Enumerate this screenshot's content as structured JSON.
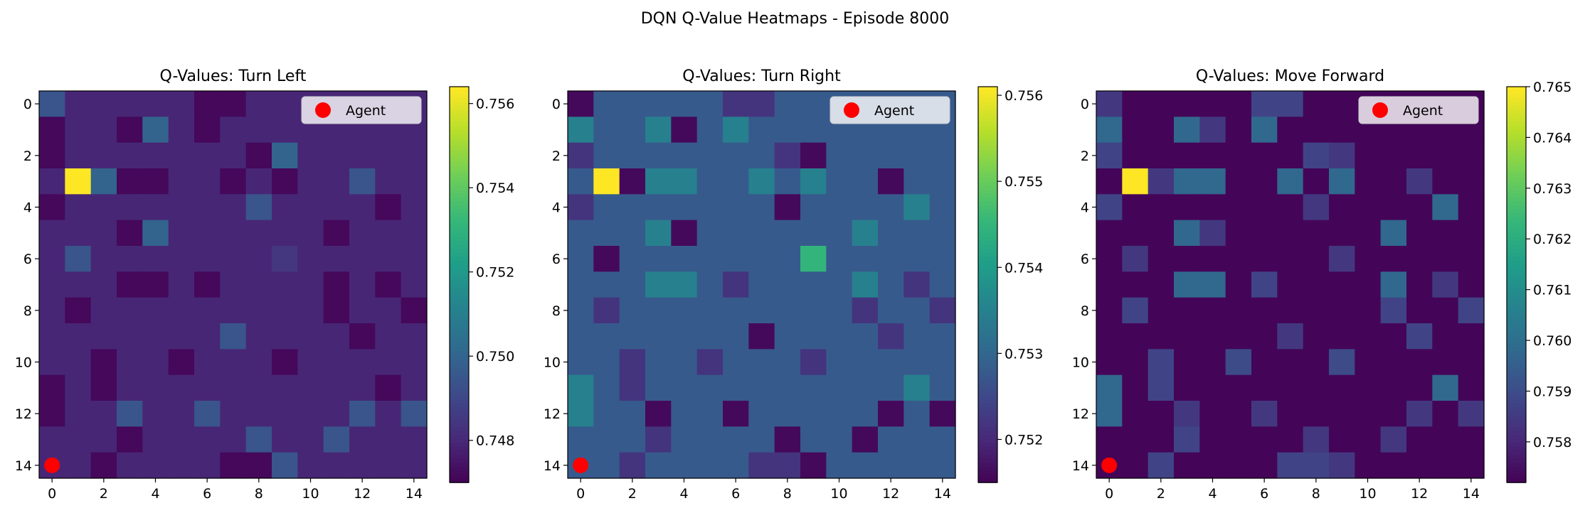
{
  "figure": {
    "title": "DQN Q-Value Heatmaps - Episode 8000"
  },
  "colormap": {
    "name": "viridis",
    "stops": [
      "#440154",
      "#482878",
      "#3e4989",
      "#31688e",
      "#26828e",
      "#1f9e89",
      "#35b779",
      "#6ece58",
      "#b5de2b",
      "#fde725"
    ]
  },
  "chart_data": [
    {
      "type": "heatmap",
      "title": "Q-Values: Turn Left",
      "grid_size": 15,
      "x_ticks": [
        0,
        2,
        4,
        6,
        8,
        10,
        12,
        14
      ],
      "y_ticks": [
        0,
        2,
        4,
        6,
        8,
        10,
        12,
        14
      ],
      "vmin": 0.747,
      "vmax": 0.7564,
      "colorbar_ticks": [
        {
          "value": 0.748,
          "label": "0.748"
        },
        {
          "value": 0.75,
          "label": "0.750"
        },
        {
          "value": 0.752,
          "label": "0.752"
        },
        {
          "value": 0.754,
          "label": "0.754"
        },
        {
          "value": 0.756,
          "label": "0.756"
        }
      ],
      "agent": {
        "x": 0,
        "y": 14,
        "color": "#ff0000",
        "label": "Agent"
      },
      "legend": {
        "position": "upper-right",
        "label": "Agent"
      },
      "values": [
        [
          0.7495,
          0.748,
          0.748,
          0.748,
          0.748,
          0.748,
          0.7472,
          0.7472,
          0.748,
          0.748,
          0.748,
          0.748,
          0.748,
          0.748,
          0.748
        ],
        [
          0.7472,
          0.748,
          0.748,
          0.7472,
          0.75,
          0.748,
          0.7472,
          0.748,
          0.748,
          0.748,
          0.748,
          0.748,
          0.748,
          0.748,
          0.748
        ],
        [
          0.7472,
          0.748,
          0.748,
          0.748,
          0.748,
          0.748,
          0.748,
          0.748,
          0.7472,
          0.75,
          0.748,
          0.748,
          0.748,
          0.748,
          0.748
        ],
        [
          0.748,
          0.7564,
          0.75,
          0.7472,
          0.7472,
          0.748,
          0.748,
          0.7472,
          0.748,
          0.7472,
          0.748,
          0.748,
          0.7495,
          0.748,
          0.748
        ],
        [
          0.7472,
          0.748,
          0.748,
          0.748,
          0.748,
          0.748,
          0.748,
          0.748,
          0.7495,
          0.748,
          0.748,
          0.748,
          0.748,
          0.7472,
          0.748
        ],
        [
          0.748,
          0.748,
          0.748,
          0.7472,
          0.75,
          0.748,
          0.748,
          0.748,
          0.748,
          0.748,
          0.748,
          0.7472,
          0.748,
          0.748,
          0.748
        ],
        [
          0.748,
          0.7495,
          0.748,
          0.748,
          0.748,
          0.748,
          0.748,
          0.748,
          0.748,
          0.7485,
          0.748,
          0.748,
          0.748,
          0.748,
          0.748
        ],
        [
          0.748,
          0.748,
          0.748,
          0.7472,
          0.7472,
          0.748,
          0.7472,
          0.748,
          0.748,
          0.748,
          0.748,
          0.7472,
          0.748,
          0.7472,
          0.748
        ],
        [
          0.748,
          0.7472,
          0.748,
          0.748,
          0.748,
          0.748,
          0.748,
          0.748,
          0.748,
          0.748,
          0.748,
          0.7472,
          0.748,
          0.748,
          0.7472
        ],
        [
          0.748,
          0.748,
          0.748,
          0.748,
          0.748,
          0.748,
          0.748,
          0.7495,
          0.748,
          0.748,
          0.748,
          0.748,
          0.7472,
          0.748,
          0.748
        ],
        [
          0.748,
          0.748,
          0.7472,
          0.748,
          0.748,
          0.7472,
          0.748,
          0.748,
          0.748,
          0.7472,
          0.748,
          0.748,
          0.748,
          0.748,
          0.748
        ],
        [
          0.7472,
          0.748,
          0.7472,
          0.748,
          0.748,
          0.748,
          0.748,
          0.748,
          0.748,
          0.748,
          0.748,
          0.748,
          0.748,
          0.7472,
          0.748
        ],
        [
          0.7472,
          0.748,
          0.748,
          0.7495,
          0.748,
          0.748,
          0.7495,
          0.748,
          0.748,
          0.748,
          0.748,
          0.748,
          0.7495,
          0.748,
          0.7495
        ],
        [
          0.748,
          0.748,
          0.748,
          0.7472,
          0.748,
          0.748,
          0.748,
          0.748,
          0.7495,
          0.748,
          0.748,
          0.7495,
          0.748,
          0.748,
          0.748
        ],
        [
          0.748,
          0.748,
          0.7472,
          0.748,
          0.748,
          0.748,
          0.748,
          0.7472,
          0.7472,
          0.7495,
          0.748,
          0.748,
          0.748,
          0.748,
          0.748
        ]
      ]
    },
    {
      "type": "heatmap",
      "title": "Q-Values: Turn Right",
      "grid_size": 15,
      "x_ticks": [
        0,
        2,
        4,
        6,
        8,
        10,
        12,
        14
      ],
      "y_ticks": [
        0,
        2,
        4,
        6,
        8,
        10,
        12,
        14
      ],
      "vmin": 0.7515,
      "vmax": 0.7561,
      "colorbar_ticks": [
        {
          "value": 0.752,
          "label": "0.752"
        },
        {
          "value": 0.753,
          "label": "0.753"
        },
        {
          "value": 0.754,
          "label": "0.754"
        },
        {
          "value": 0.755,
          "label": "0.755"
        },
        {
          "value": 0.756,
          "label": "0.756"
        }
      ],
      "agent": {
        "x": 0,
        "y": 14,
        "color": "#ff0000",
        "label": "Agent"
      },
      "legend": {
        "position": "upper-right",
        "label": "Agent"
      },
      "values": [
        [
          0.7516,
          0.7528,
          0.7528,
          0.7528,
          0.7528,
          0.7528,
          0.7522,
          0.7522,
          0.7528,
          0.7528,
          0.7528,
          0.7528,
          0.7528,
          0.7528,
          0.7528
        ],
        [
          0.7535,
          0.7528,
          0.7528,
          0.7535,
          0.7516,
          0.7528,
          0.7535,
          0.7528,
          0.7528,
          0.7528,
          0.7528,
          0.7528,
          0.7528,
          0.7528,
          0.7528
        ],
        [
          0.7522,
          0.7528,
          0.7528,
          0.7528,
          0.7528,
          0.7528,
          0.7528,
          0.7528,
          0.7522,
          0.7516,
          0.7528,
          0.7528,
          0.7528,
          0.7528,
          0.7528
        ],
        [
          0.7528,
          0.7561,
          0.7516,
          0.7535,
          0.7535,
          0.7528,
          0.7528,
          0.7535,
          0.7528,
          0.7535,
          0.7528,
          0.7528,
          0.7516,
          0.7528,
          0.7528
        ],
        [
          0.7522,
          0.7528,
          0.7528,
          0.7528,
          0.7528,
          0.7528,
          0.7528,
          0.7528,
          0.7516,
          0.7528,
          0.7528,
          0.7528,
          0.7528,
          0.7535,
          0.7528
        ],
        [
          0.7528,
          0.7528,
          0.7528,
          0.7535,
          0.7516,
          0.7528,
          0.7528,
          0.7528,
          0.7528,
          0.7528,
          0.7528,
          0.7535,
          0.7528,
          0.7528,
          0.7528
        ],
        [
          0.7528,
          0.7516,
          0.7528,
          0.7528,
          0.7528,
          0.7528,
          0.7528,
          0.7528,
          0.7528,
          0.7545,
          0.7528,
          0.7528,
          0.7528,
          0.7528,
          0.7528
        ],
        [
          0.7528,
          0.7528,
          0.7528,
          0.7535,
          0.7535,
          0.7528,
          0.7522,
          0.7528,
          0.7528,
          0.7528,
          0.7528,
          0.7535,
          0.7528,
          0.7522,
          0.7528
        ],
        [
          0.7528,
          0.7522,
          0.7528,
          0.7528,
          0.7528,
          0.7528,
          0.7528,
          0.7528,
          0.7528,
          0.7528,
          0.7528,
          0.7522,
          0.7528,
          0.7528,
          0.7522
        ],
        [
          0.7528,
          0.7528,
          0.7528,
          0.7528,
          0.7528,
          0.7528,
          0.7528,
          0.7516,
          0.7528,
          0.7528,
          0.7528,
          0.7528,
          0.7522,
          0.7528,
          0.7528
        ],
        [
          0.7528,
          0.7528,
          0.7522,
          0.7528,
          0.7528,
          0.7522,
          0.7528,
          0.7528,
          0.7528,
          0.7522,
          0.7528,
          0.7528,
          0.7528,
          0.7528,
          0.7528
        ],
        [
          0.7535,
          0.7528,
          0.7522,
          0.7528,
          0.7528,
          0.7528,
          0.7528,
          0.7528,
          0.7528,
          0.7528,
          0.7528,
          0.7528,
          0.7528,
          0.7535,
          0.7528
        ],
        [
          0.7535,
          0.7528,
          0.7528,
          0.7516,
          0.7528,
          0.7528,
          0.7516,
          0.7528,
          0.7528,
          0.7528,
          0.7528,
          0.7528,
          0.7516,
          0.7528,
          0.7516
        ],
        [
          0.7528,
          0.7528,
          0.7528,
          0.7522,
          0.7528,
          0.7528,
          0.7528,
          0.7528,
          0.7516,
          0.7528,
          0.7528,
          0.7516,
          0.7528,
          0.7528,
          0.7528
        ],
        [
          0.7528,
          0.7528,
          0.7522,
          0.7528,
          0.7528,
          0.7528,
          0.7528,
          0.7522,
          0.7522,
          0.7516,
          0.7528,
          0.7528,
          0.7528,
          0.7528,
          0.7528
        ]
      ]
    },
    {
      "type": "heatmap",
      "title": "Q-Values: Move Forward",
      "grid_size": 15,
      "x_ticks": [
        0,
        2,
        4,
        6,
        8,
        10,
        12,
        14
      ],
      "y_ticks": [
        0,
        2,
        4,
        6,
        8,
        10,
        12,
        14
      ],
      "vmin": 0.7572,
      "vmax": 0.765,
      "colorbar_ticks": [
        {
          "value": 0.758,
          "label": "0.758"
        },
        {
          "value": 0.759,
          "label": "0.759"
        },
        {
          "value": 0.76,
          "label": "0.760"
        },
        {
          "value": 0.761,
          "label": "0.761"
        },
        {
          "value": 0.762,
          "label": "0.762"
        },
        {
          "value": 0.763,
          "label": "0.763"
        },
        {
          "value": 0.764,
          "label": "0.764"
        },
        {
          "value": 0.765,
          "label": "0.765"
        }
      ],
      "agent": {
        "x": 0,
        "y": 14,
        "color": "#ff0000",
        "label": "Agent"
      },
      "legend": {
        "position": "upper-right",
        "label": "Agent"
      },
      "values": [
        [
          0.7585,
          0.7573,
          0.7573,
          0.7573,
          0.7573,
          0.7573,
          0.7588,
          0.7588,
          0.7573,
          0.7573,
          0.7573,
          0.7573,
          0.7573,
          0.7573,
          0.7573
        ],
        [
          0.7598,
          0.7573,
          0.7573,
          0.7598,
          0.7585,
          0.7573,
          0.7598,
          0.7573,
          0.7573,
          0.7573,
          0.7573,
          0.7573,
          0.7573,
          0.7573,
          0.7573
        ],
        [
          0.7588,
          0.7573,
          0.7573,
          0.7573,
          0.7573,
          0.7573,
          0.7573,
          0.7573,
          0.7588,
          0.7585,
          0.7573,
          0.7573,
          0.7573,
          0.7573,
          0.7573
        ],
        [
          0.7573,
          0.765,
          0.7585,
          0.7598,
          0.7598,
          0.7573,
          0.7573,
          0.7598,
          0.7573,
          0.7598,
          0.7573,
          0.7573,
          0.7585,
          0.7573,
          0.7573
        ],
        [
          0.7588,
          0.7573,
          0.7573,
          0.7573,
          0.7573,
          0.7573,
          0.7573,
          0.7573,
          0.7585,
          0.7573,
          0.7573,
          0.7573,
          0.7573,
          0.7598,
          0.7573
        ],
        [
          0.7573,
          0.7573,
          0.7573,
          0.7598,
          0.7585,
          0.7573,
          0.7573,
          0.7573,
          0.7573,
          0.7573,
          0.7573,
          0.7598,
          0.7573,
          0.7573,
          0.7573
        ],
        [
          0.7573,
          0.7585,
          0.7573,
          0.7573,
          0.7573,
          0.7573,
          0.7573,
          0.7573,
          0.7573,
          0.7585,
          0.7573,
          0.7573,
          0.7573,
          0.7573,
          0.7573
        ],
        [
          0.7573,
          0.7573,
          0.7573,
          0.7598,
          0.7598,
          0.7573,
          0.7588,
          0.7573,
          0.7573,
          0.7573,
          0.7573,
          0.7598,
          0.7573,
          0.7585,
          0.7573
        ],
        [
          0.7573,
          0.7588,
          0.7573,
          0.7573,
          0.7573,
          0.7573,
          0.7573,
          0.7573,
          0.7573,
          0.7573,
          0.7573,
          0.7588,
          0.7573,
          0.7573,
          0.7588
        ],
        [
          0.7573,
          0.7573,
          0.7573,
          0.7573,
          0.7573,
          0.7573,
          0.7573,
          0.7585,
          0.7573,
          0.7573,
          0.7573,
          0.7573,
          0.7588,
          0.7573,
          0.7573
        ],
        [
          0.7573,
          0.7573,
          0.7588,
          0.7573,
          0.7573,
          0.759,
          0.7573,
          0.7573,
          0.7573,
          0.759,
          0.7573,
          0.7573,
          0.7573,
          0.7573,
          0.7573
        ],
        [
          0.7598,
          0.7573,
          0.7588,
          0.7573,
          0.7573,
          0.7573,
          0.7573,
          0.7573,
          0.7573,
          0.7573,
          0.7573,
          0.7573,
          0.7573,
          0.7598,
          0.7573
        ],
        [
          0.7598,
          0.7573,
          0.7573,
          0.7585,
          0.7573,
          0.7573,
          0.7585,
          0.7573,
          0.7573,
          0.7573,
          0.7573,
          0.7573,
          0.7585,
          0.7573,
          0.7585
        ],
        [
          0.7573,
          0.7573,
          0.7573,
          0.7588,
          0.7573,
          0.7573,
          0.7573,
          0.7573,
          0.7585,
          0.7573,
          0.7573,
          0.7585,
          0.7573,
          0.7573,
          0.7573
        ],
        [
          0.7573,
          0.7573,
          0.7588,
          0.7573,
          0.7573,
          0.7573,
          0.7573,
          0.7588,
          0.7588,
          0.7585,
          0.7573,
          0.7573,
          0.7573,
          0.7573,
          0.7573
        ]
      ]
    }
  ]
}
